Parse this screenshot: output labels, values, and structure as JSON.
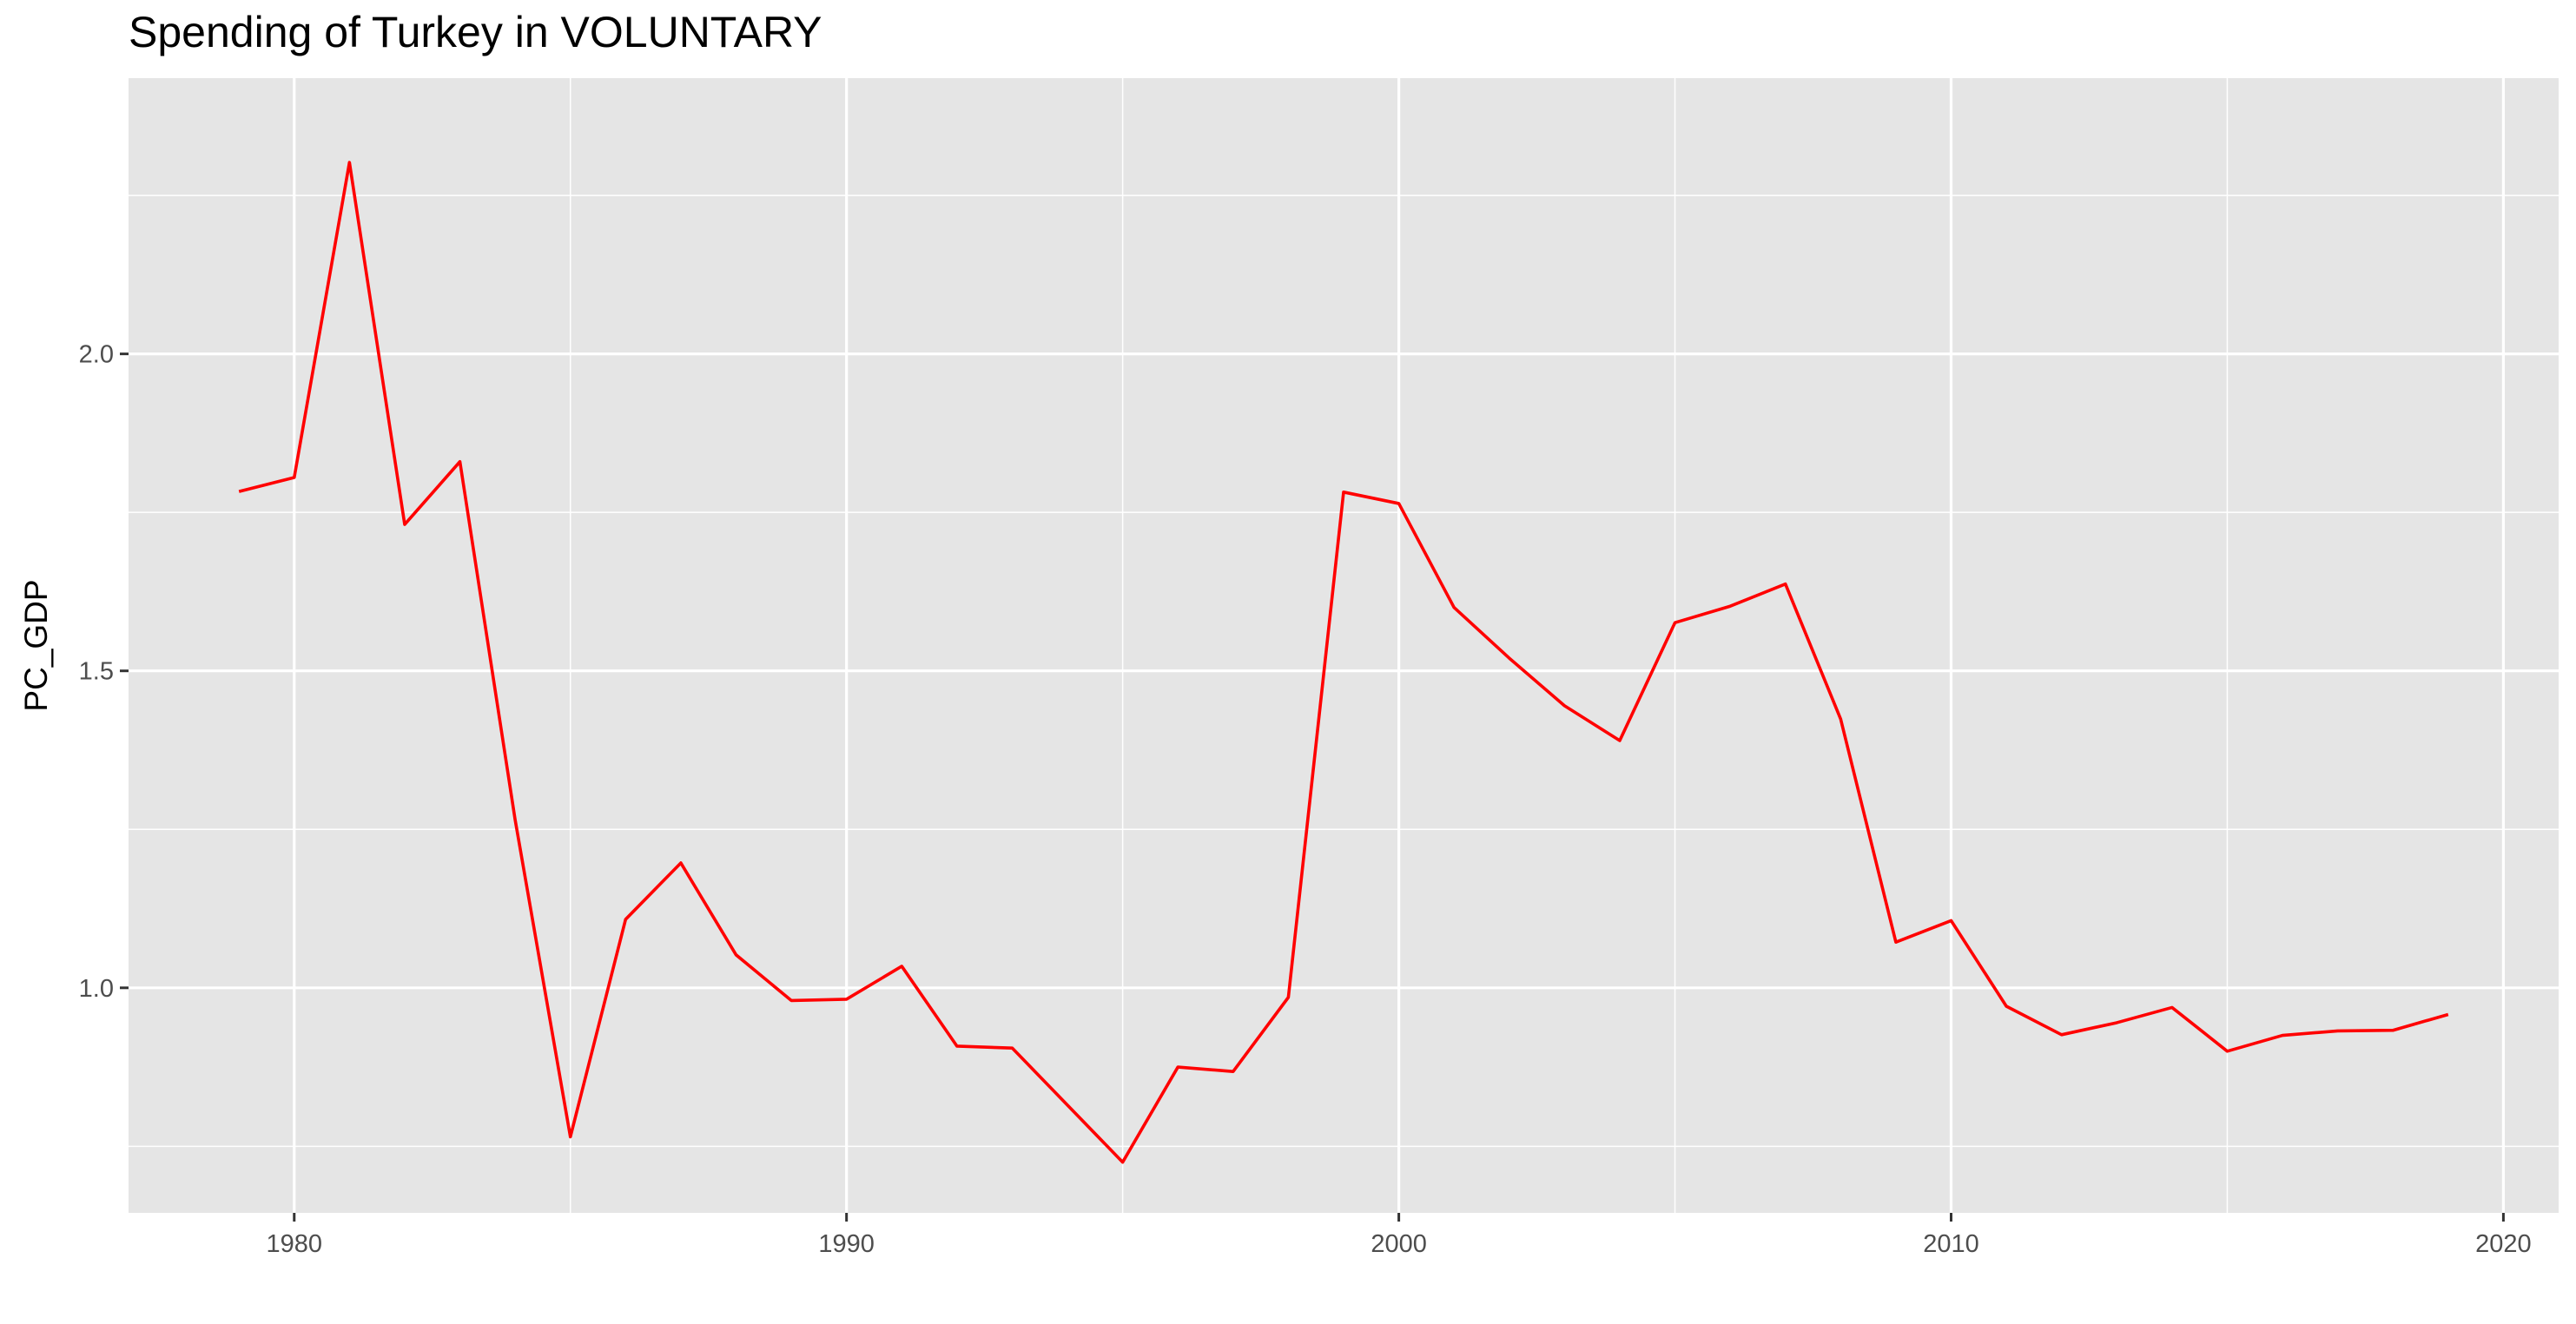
{
  "chart_data": {
    "type": "line",
    "title": "Spending of Turkey in VOLUNTARY",
    "xlabel": "",
    "ylabel": "PC_GDP",
    "xlim": [
      1977.0,
      2021.0
    ],
    "ylim": [
      0.645,
      2.435
    ],
    "x_ticks": [
      1980,
      1990,
      2000,
      2010,
      2020
    ],
    "y_ticks": [
      1.0,
      1.5,
      2.0
    ],
    "y_tick_labels": [
      "1.0",
      "1.5",
      "2.0"
    ],
    "grid": true,
    "line_color": "#ff0000",
    "panel_color": "#e5e5e5",
    "grid_color": "#ffffff",
    "series": [
      {
        "x": [
          1979,
          1980,
          1981,
          1982,
          1983,
          1984,
          1985,
          1986,
          1987,
          1988,
          1989,
          1990,
          1991,
          1992,
          1993,
          1994,
          1995,
          1996,
          1997,
          1998,
          1999,
          2000,
          2001,
          2002,
          2003,
          2004,
          2005,
          2006,
          2007,
          2008,
          2009,
          2010,
          2011,
          2012,
          2013,
          2014,
          2015,
          2016,
          2017,
          2018,
          2019
        ],
        "values": [
          1.783,
          1.805,
          2.302,
          1.731,
          1.83,
          1.265,
          0.765,
          1.108,
          1.197,
          1.052,
          0.98,
          0.982,
          1.034,
          0.908,
          0.905,
          0.815,
          0.725,
          0.875,
          0.868,
          0.985,
          1.782,
          1.764,
          1.6,
          1.52,
          1.445,
          1.39,
          1.576,
          1.602,
          1.637,
          1.424,
          1.072,
          1.106,
          0.971,
          0.926,
          0.945,
          0.969,
          0.9,
          0.925,
          0.932,
          0.933,
          0.958
        ]
      }
    ]
  }
}
